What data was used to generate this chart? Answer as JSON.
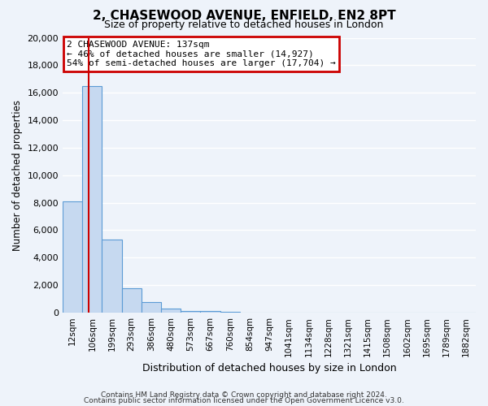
{
  "title": "2, CHASEWOOD AVENUE, ENFIELD, EN2 8PT",
  "subtitle": "Size of property relative to detached houses in London",
  "xlabel": "Distribution of detached houses by size in London",
  "ylabel": "Number of detached properties",
  "bar_labels": [
    "12sqm",
    "106sqm",
    "199sqm",
    "293sqm",
    "386sqm",
    "480sqm",
    "573sqm",
    "667sqm",
    "760sqm",
    "854sqm",
    "947sqm",
    "1041sqm",
    "1134sqm",
    "1228sqm",
    "1321sqm",
    "1415sqm",
    "1508sqm",
    "1602sqm",
    "1695sqm",
    "1789sqm",
    "1882sqm"
  ],
  "bar_values": [
    8100,
    16500,
    5300,
    1750,
    750,
    300,
    150,
    100,
    50,
    0,
    0,
    0,
    0,
    0,
    0,
    0,
    0,
    0,
    0,
    0,
    0
  ],
  "bar_color": "#c6d9f0",
  "bar_edge_color": "#5b9bd5",
  "ylim": [
    0,
    20000
  ],
  "yticks": [
    0,
    2000,
    4000,
    6000,
    8000,
    10000,
    12000,
    14000,
    16000,
    18000,
    20000
  ],
  "property_line_color": "#cc0000",
  "annotation_title": "2 CHASEWOOD AVENUE: 137sqm",
  "annotation_line1": "← 46% of detached houses are smaller (14,927)",
  "annotation_line2": "54% of semi-detached houses are larger (17,704) →",
  "annotation_box_color": "#cc0000",
  "footer1": "Contains HM Land Registry data © Crown copyright and database right 2024.",
  "footer2": "Contains public sector information licensed under the Open Government Licence v3.0.",
  "bg_color": "#eef3fa",
  "grid_color": "#ffffff"
}
